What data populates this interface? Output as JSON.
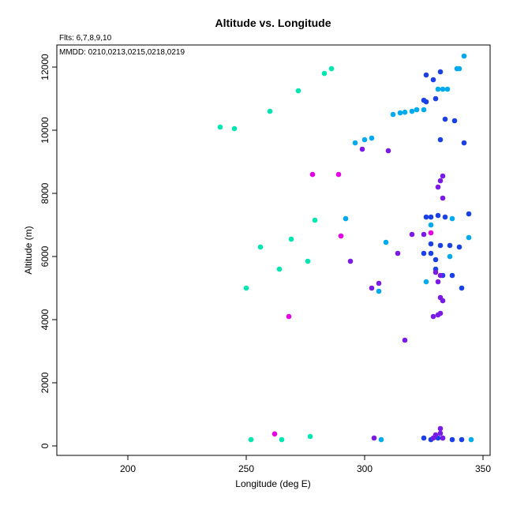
{
  "chart_data": {
    "type": "scatter",
    "title": "Altitude vs. Longitude",
    "subtitle": "Flts: 6,7,8,9,10",
    "annotation": "MMDD: 0210,0213,0215,0218,0219",
    "xlabel": "Longitude (deg E)",
    "ylabel": "Altitude (m)",
    "xlim": [
      170,
      353
    ],
    "ylim": [
      -300,
      12700
    ],
    "xticks": [
      200,
      250,
      300,
      350
    ],
    "yticks": [
      0,
      2000,
      4000,
      6000,
      8000,
      10000,
      12000
    ],
    "grid": false,
    "colors": {
      "magenta": "#e600e6",
      "violet": "#7a1ae6",
      "blue": "#1a40e6",
      "skyblue": "#00aaee",
      "teal": "#00e6b0"
    },
    "points": [
      {
        "x": 239,
        "y": 10100,
        "c": "teal"
      },
      {
        "x": 245,
        "y": 10050,
        "c": "teal"
      },
      {
        "x": 260,
        "y": 10600,
        "c": "teal"
      },
      {
        "x": 272,
        "y": 11250,
        "c": "teal"
      },
      {
        "x": 283,
        "y": 11800,
        "c": "teal"
      },
      {
        "x": 286,
        "y": 11950,
        "c": "teal"
      },
      {
        "x": 250,
        "y": 5000,
        "c": "teal"
      },
      {
        "x": 256,
        "y": 6300,
        "c": "teal"
      },
      {
        "x": 264,
        "y": 5600,
        "c": "teal"
      },
      {
        "x": 269,
        "y": 6550,
        "c": "teal"
      },
      {
        "x": 276,
        "y": 5850,
        "c": "teal"
      },
      {
        "x": 279,
        "y": 7150,
        "c": "teal"
      },
      {
        "x": 252,
        "y": 200,
        "c": "teal"
      },
      {
        "x": 265,
        "y": 200,
        "c": "teal"
      },
      {
        "x": 277,
        "y": 300,
        "c": "teal"
      },
      {
        "x": 262,
        "y": 380,
        "c": "magenta"
      },
      {
        "x": 268,
        "y": 4100,
        "c": "magenta"
      },
      {
        "x": 278,
        "y": 8600,
        "c": "magenta"
      },
      {
        "x": 289,
        "y": 8600,
        "c": "magenta"
      },
      {
        "x": 290,
        "y": 6650,
        "c": "magenta"
      },
      {
        "x": 328,
        "y": 6750,
        "c": "magenta"
      },
      {
        "x": 296,
        "y": 9600,
        "c": "skyblue"
      },
      {
        "x": 300,
        "y": 9700,
        "c": "skyblue"
      },
      {
        "x": 303,
        "y": 9750,
        "c": "skyblue"
      },
      {
        "x": 312,
        "y": 10500,
        "c": "skyblue"
      },
      {
        "x": 315,
        "y": 10550,
        "c": "skyblue"
      },
      {
        "x": 317,
        "y": 10570,
        "c": "skyblue"
      },
      {
        "x": 320,
        "y": 10600,
        "c": "skyblue"
      },
      {
        "x": 322,
        "y": 10650,
        "c": "skyblue"
      },
      {
        "x": 325,
        "y": 10650,
        "c": "skyblue"
      },
      {
        "x": 331,
        "y": 11300,
        "c": "skyblue"
      },
      {
        "x": 333,
        "y": 11300,
        "c": "skyblue"
      },
      {
        "x": 335,
        "y": 11300,
        "c": "skyblue"
      },
      {
        "x": 339,
        "y": 11950,
        "c": "skyblue"
      },
      {
        "x": 340,
        "y": 11950,
        "c": "skyblue"
      },
      {
        "x": 342,
        "y": 12350,
        "c": "skyblue"
      },
      {
        "x": 292,
        "y": 7200,
        "c": "skyblue"
      },
      {
        "x": 309,
        "y": 6450,
        "c": "skyblue"
      },
      {
        "x": 306,
        "y": 4900,
        "c": "skyblue"
      },
      {
        "x": 328,
        "y": 7000,
        "c": "skyblue"
      },
      {
        "x": 337,
        "y": 7200,
        "c": "skyblue"
      },
      {
        "x": 344,
        "y": 6600,
        "c": "skyblue"
      },
      {
        "x": 336,
        "y": 6000,
        "c": "skyblue"
      },
      {
        "x": 326,
        "y": 5200,
        "c": "skyblue"
      },
      {
        "x": 307,
        "y": 200,
        "c": "skyblue"
      },
      {
        "x": 345,
        "y": 200,
        "c": "skyblue"
      },
      {
        "x": 326,
        "y": 11750,
        "c": "blue"
      },
      {
        "x": 329,
        "y": 11600,
        "c": "blue"
      },
      {
        "x": 332,
        "y": 11850,
        "c": "blue"
      },
      {
        "x": 325,
        "y": 10950,
        "c": "blue"
      },
      {
        "x": 326,
        "y": 10900,
        "c": "blue"
      },
      {
        "x": 330,
        "y": 11000,
        "c": "blue"
      },
      {
        "x": 334,
        "y": 10350,
        "c": "blue"
      },
      {
        "x": 338,
        "y": 10300,
        "c": "blue"
      },
      {
        "x": 332,
        "y": 9700,
        "c": "blue"
      },
      {
        "x": 342,
        "y": 9600,
        "c": "blue"
      },
      {
        "x": 326,
        "y": 7250,
        "c": "blue"
      },
      {
        "x": 328,
        "y": 7250,
        "c": "blue"
      },
      {
        "x": 331,
        "y": 7300,
        "c": "blue"
      },
      {
        "x": 334,
        "y": 7250,
        "c": "blue"
      },
      {
        "x": 344,
        "y": 7350,
        "c": "blue"
      },
      {
        "x": 328,
        "y": 6400,
        "c": "blue"
      },
      {
        "x": 332,
        "y": 6350,
        "c": "blue"
      },
      {
        "x": 336,
        "y": 6350,
        "c": "blue"
      },
      {
        "x": 340,
        "y": 6300,
        "c": "blue"
      },
      {
        "x": 325,
        "y": 6100,
        "c": "blue"
      },
      {
        "x": 328,
        "y": 6100,
        "c": "blue"
      },
      {
        "x": 330,
        "y": 5900,
        "c": "blue"
      },
      {
        "x": 330,
        "y": 5600,
        "c": "blue"
      },
      {
        "x": 333,
        "y": 5400,
        "c": "blue"
      },
      {
        "x": 337,
        "y": 5400,
        "c": "blue"
      },
      {
        "x": 341,
        "y": 5000,
        "c": "blue"
      },
      {
        "x": 325,
        "y": 250,
        "c": "blue"
      },
      {
        "x": 328,
        "y": 200,
        "c": "blue"
      },
      {
        "x": 331,
        "y": 250,
        "c": "blue"
      },
      {
        "x": 333,
        "y": 250,
        "c": "blue"
      },
      {
        "x": 337,
        "y": 200,
        "c": "blue"
      },
      {
        "x": 341,
        "y": 200,
        "c": "blue"
      },
      {
        "x": 299,
        "y": 9400,
        "c": "violet"
      },
      {
        "x": 310,
        "y": 9350,
        "c": "violet"
      },
      {
        "x": 333,
        "y": 8550,
        "c": "violet"
      },
      {
        "x": 332,
        "y": 8400,
        "c": "violet"
      },
      {
        "x": 331,
        "y": 8200,
        "c": "violet"
      },
      {
        "x": 333,
        "y": 7850,
        "c": "violet"
      },
      {
        "x": 320,
        "y": 6700,
        "c": "violet"
      },
      {
        "x": 325,
        "y": 6700,
        "c": "violet"
      },
      {
        "x": 314,
        "y": 6100,
        "c": "violet"
      },
      {
        "x": 294,
        "y": 5850,
        "c": "violet"
      },
      {
        "x": 303,
        "y": 5000,
        "c": "violet"
      },
      {
        "x": 306,
        "y": 5150,
        "c": "violet"
      },
      {
        "x": 331,
        "y": 5200,
        "c": "violet"
      },
      {
        "x": 332,
        "y": 5400,
        "c": "violet"
      },
      {
        "x": 330,
        "y": 5500,
        "c": "violet"
      },
      {
        "x": 332,
        "y": 4700,
        "c": "violet"
      },
      {
        "x": 333,
        "y": 4600,
        "c": "violet"
      },
      {
        "x": 329,
        "y": 4100,
        "c": "violet"
      },
      {
        "x": 331,
        "y": 4150,
        "c": "violet"
      },
      {
        "x": 332,
        "y": 4200,
        "c": "violet"
      },
      {
        "x": 317,
        "y": 3350,
        "c": "violet"
      },
      {
        "x": 304,
        "y": 250,
        "c": "violet"
      },
      {
        "x": 329,
        "y": 250,
        "c": "violet"
      },
      {
        "x": 330,
        "y": 350,
        "c": "violet"
      },
      {
        "x": 332,
        "y": 400,
        "c": "violet"
      },
      {
        "x": 332,
        "y": 550,
        "c": "violet"
      },
      {
        "x": 333,
        "y": 250,
        "c": "violet"
      }
    ]
  }
}
